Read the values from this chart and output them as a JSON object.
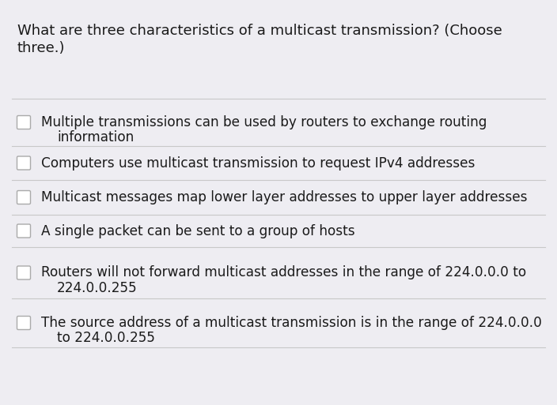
{
  "title_line1": "What are three characteristics of a multicast transmission? (Choose",
  "title_line2": "three.)",
  "options": [
    "Multiple transmissions can be used by routers to exchange routing\ninformation",
    "Computers use multicast transmission to request IPv4 addresses",
    "Multicast messages map lower layer addresses to upper layer addresses",
    "A single packet can be sent to a group of hosts",
    "Routers will not forward multicast addresses in the range of 224.0.0.0 to\n224.0.0.255",
    "The source address of a multicast transmission is in the range of 224.0.0.0\nto 224.0.0.255"
  ],
  "bg_color": "#eeedf2",
  "text_color": "#1a1a1a",
  "line_color": "#c8c8c8",
  "checkbox_edge_color": "#aaaaaa",
  "title_fontsize": 13.0,
  "option_fontsize": 12.2,
  "fig_width": 7.04,
  "fig_height": 5.13,
  "dpi": 100
}
